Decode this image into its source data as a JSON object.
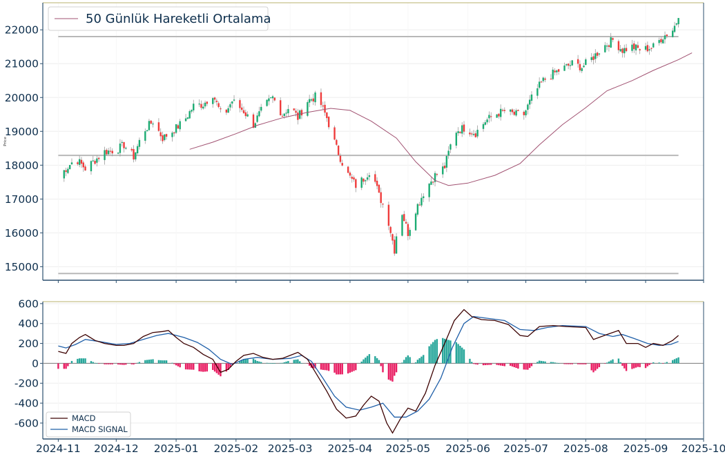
{
  "chart_data": [
    {
      "type": "candlestick",
      "ylabel": "Price",
      "ylim": [
        14600,
        22800
      ],
      "yticks": [
        15000,
        16000,
        17000,
        18000,
        19000,
        20000,
        21000,
        22000
      ],
      "horizontal_lines": [
        21800,
        18290,
        14800
      ],
      "legend": {
        "position": "top-left",
        "entries": [
          "50 Günlük Hareketli Ortalama"
        ]
      },
      "series": [
        {
          "name": "50 Günlük Hareketli Ortalama",
          "type": "line",
          "points": [
            [
              "2025-01-08",
              18470
            ],
            [
              "2025-01-20",
              18680
            ],
            [
              "2025-02-01",
              18930
            ],
            [
              "2025-02-12",
              19180
            ],
            [
              "2025-02-25",
              19400
            ],
            [
              "2025-03-10",
              19560
            ],
            [
              "2025-03-22",
              19680
            ],
            [
              "2025-04-01",
              19620
            ],
            [
              "2025-04-12",
              19300
            ],
            [
              "2025-04-25",
              18800
            ],
            [
              "2025-05-05",
              18100
            ],
            [
              "2025-05-15",
              17550
            ],
            [
              "2025-05-22",
              17400
            ],
            [
              "2025-06-01",
              17470
            ],
            [
              "2025-06-15",
              17700
            ],
            [
              "2025-06-28",
              18050
            ],
            [
              "2025-07-08",
              18600
            ],
            [
              "2025-07-20",
              19200
            ],
            [
              "2025-08-01",
              19700
            ],
            [
              "2025-08-12",
              20200
            ],
            [
              "2025-08-25",
              20500
            ],
            [
              "2025-09-05",
              20800
            ],
            [
              "2025-09-18",
              21120
            ],
            [
              "2025-09-25",
              21320
            ]
          ]
        },
        {
          "name": "Price",
          "type": "candles",
          "points": [
            [
              "2024-11-01",
              17650
            ],
            [
              "2024-11-05",
              17900
            ],
            [
              "2024-11-10",
              18200
            ],
            [
              "2024-11-15",
              17900
            ],
            [
              "2024-11-20",
              18150
            ],
            [
              "2024-11-25",
              18400
            ],
            [
              "2024-12-01",
              18450
            ],
            [
              "2024-12-05",
              18600
            ],
            [
              "2024-12-10",
              18250
            ],
            [
              "2024-12-15",
              19000
            ],
            [
              "2024-12-20",
              19300
            ],
            [
              "2024-12-25",
              18800
            ],
            [
              "2024-12-30",
              19000
            ],
            [
              "2025-01-05",
              19300
            ],
            [
              "2025-01-10",
              19750
            ],
            [
              "2025-01-15",
              19800
            ],
            [
              "2025-01-20",
              20100
            ],
            [
              "2025-01-25",
              19400
            ],
            [
              "2025-01-30",
              19900
            ],
            [
              "2025-02-05",
              19600
            ],
            [
              "2025-02-10",
              19200
            ],
            [
              "2025-02-15",
              19700
            ],
            [
              "2025-02-20",
              20000
            ],
            [
              "2025-02-25",
              19500
            ],
            [
              "2025-03-01",
              19750
            ],
            [
              "2025-03-05",
              19400
            ],
            [
              "2025-03-10",
              19900
            ],
            [
              "2025-03-15",
              20050
            ],
            [
              "2025-03-20",
              19400
            ],
            [
              "2025-03-25",
              18500
            ],
            [
              "2025-03-30",
              17800
            ],
            [
              "2025-04-04",
              17400
            ],
            [
              "2025-04-08",
              17600
            ],
            [
              "2025-04-12",
              17900
            ],
            [
              "2025-04-16",
              17100
            ],
            [
              "2025-04-20",
              16600
            ],
            [
              "2025-04-24",
              15500
            ],
            [
              "2025-04-27",
              16800
            ],
            [
              "2025-05-01",
              16000
            ],
            [
              "2025-05-05",
              16700
            ],
            [
              "2025-05-10",
              17300
            ],
            [
              "2025-05-15",
              17700
            ],
            [
              "2025-05-20",
              17950
            ],
            [
              "2025-05-25",
              19000
            ],
            [
              "2025-05-30",
              19100
            ],
            [
              "2025-06-05",
              18950
            ],
            [
              "2025-06-10",
              19300
            ],
            [
              "2025-06-15",
              19500
            ],
            [
              "2025-06-20",
              19600
            ],
            [
              "2025-06-25",
              19500
            ],
            [
              "2025-06-30",
              19500
            ],
            [
              "2025-07-05",
              20100
            ],
            [
              "2025-07-10",
              20500
            ],
            [
              "2025-07-15",
              20700
            ],
            [
              "2025-07-20",
              20850
            ],
            [
              "2025-07-25",
              21000
            ],
            [
              "2025-07-30",
              20900
            ],
            [
              "2025-08-05",
              21200
            ],
            [
              "2025-08-10",
              21500
            ],
            [
              "2025-08-15",
              21700
            ],
            [
              "2025-08-20",
              21400
            ],
            [
              "2025-08-25",
              21500
            ],
            [
              "2025-08-30",
              21400
            ],
            [
              "2025-09-05",
              21500
            ],
            [
              "2025-09-10",
              21800
            ],
            [
              "2025-09-15",
              22000
            ],
            [
              "2025-09-18",
              22350
            ]
          ]
        }
      ]
    },
    {
      "type": "line",
      "ylim": [
        -760,
        620
      ],
      "yticks": [
        -600,
        -400,
        -200,
        0,
        200,
        400,
        600
      ],
      "xticks": [
        "2024-11",
        "2024-12",
        "2025-01",
        "2025-02",
        "2025-03",
        "2025-04",
        "2025-05",
        "2025-06",
        "2025-07",
        "2025-08",
        "2025-09",
        "2025-10"
      ],
      "xlim": [
        "2024-10-24",
        "2025-10-01"
      ],
      "horizontal_lines": [
        0
      ],
      "legend": {
        "position": "bottom-left",
        "entries": [
          "MACD",
          "MACD SIGNAL"
        ]
      },
      "series": [
        {
          "name": "MACD",
          "color": "#3b0000",
          "points": [
            [
              "2024-11-01",
              120
            ],
            [
              "2024-11-05",
              100
            ],
            [
              "2024-11-08",
              200
            ],
            [
              "2024-11-12",
              260
            ],
            [
              "2024-11-15",
              290
            ],
            [
              "2024-11-20",
              230
            ],
            [
              "2024-11-25",
              200
            ],
            [
              "2024-12-01",
              180
            ],
            [
              "2024-12-05",
              180
            ],
            [
              "2024-12-10",
              200
            ],
            [
              "2024-12-15",
              270
            ],
            [
              "2024-12-20",
              310
            ],
            [
              "2024-12-25",
              320
            ],
            [
              "2024-12-28",
              330
            ],
            [
              "2025-01-01",
              260
            ],
            [
              "2025-01-05",
              200
            ],
            [
              "2025-01-10",
              160
            ],
            [
              "2025-01-15",
              90
            ],
            [
              "2025-01-20",
              40
            ],
            [
              "2025-01-24",
              -90
            ],
            [
              "2025-01-28",
              -60
            ],
            [
              "2025-02-01",
              20
            ],
            [
              "2025-02-05",
              80
            ],
            [
              "2025-02-10",
              100
            ],
            [
              "2025-02-15",
              60
            ],
            [
              "2025-02-20",
              40
            ],
            [
              "2025-02-25",
              50
            ],
            [
              "2025-03-01",
              80
            ],
            [
              "2025-03-05",
              110
            ],
            [
              "2025-03-10",
              40
            ],
            [
              "2025-03-15",
              -120
            ],
            [
              "2025-03-20",
              -280
            ],
            [
              "2025-03-25",
              -460
            ],
            [
              "2025-03-30",
              -550
            ],
            [
              "2025-04-04",
              -530
            ],
            [
              "2025-04-08",
              -420
            ],
            [
              "2025-04-12",
              -330
            ],
            [
              "2025-04-16",
              -380
            ],
            [
              "2025-04-20",
              -600
            ],
            [
              "2025-04-23",
              -700
            ],
            [
              "2025-04-27",
              -560
            ],
            [
              "2025-05-01",
              -450
            ],
            [
              "2025-05-05",
              -480
            ],
            [
              "2025-05-10",
              -300
            ],
            [
              "2025-05-15",
              -20
            ],
            [
              "2025-05-20",
              200
            ],
            [
              "2025-05-25",
              430
            ],
            [
              "2025-05-30",
              540
            ],
            [
              "2025-06-03",
              470
            ],
            [
              "2025-06-08",
              440
            ],
            [
              "2025-06-15",
              430
            ],
            [
              "2025-06-22",
              390
            ],
            [
              "2025-06-28",
              280
            ],
            [
              "2025-07-02",
              270
            ],
            [
              "2025-07-08",
              370
            ],
            [
              "2025-07-15",
              380
            ],
            [
              "2025-07-22",
              370
            ],
            [
              "2025-08-01",
              360
            ],
            [
              "2025-08-05",
              240
            ],
            [
              "2025-08-12",
              290
            ],
            [
              "2025-08-18",
              330
            ],
            [
              "2025-08-22",
              200
            ],
            [
              "2025-08-28",
              200
            ],
            [
              "2025-09-01",
              160
            ],
            [
              "2025-09-05",
              200
            ],
            [
              "2025-09-10",
              180
            ],
            [
              "2025-09-15",
              230
            ],
            [
              "2025-09-18",
              280
            ]
          ]
        },
        {
          "name": "MACD SIGNAL",
          "color": "#1f5fa8",
          "points": [
            [
              "2024-11-01",
              175
            ],
            [
              "2024-11-05",
              155
            ],
            [
              "2024-11-10",
              190
            ],
            [
              "2024-11-15",
              240
            ],
            [
              "2024-11-22",
              220
            ],
            [
              "2024-12-01",
              190
            ],
            [
              "2024-12-08",
              200
            ],
            [
              "2024-12-15",
              240
            ],
            [
              "2024-12-22",
              280
            ],
            [
              "2024-12-28",
              300
            ],
            [
              "2025-01-05",
              260
            ],
            [
              "2025-01-12",
              210
            ],
            [
              "2025-01-18",
              140
            ],
            [
              "2025-01-24",
              40
            ],
            [
              "2025-01-30",
              -10
            ],
            [
              "2025-02-05",
              40
            ],
            [
              "2025-02-12",
              60
            ],
            [
              "2025-02-20",
              40
            ],
            [
              "2025-03-01",
              50
            ],
            [
              "2025-03-07",
              80
            ],
            [
              "2025-03-12",
              20
            ],
            [
              "2025-03-18",
              -150
            ],
            [
              "2025-03-24",
              -330
            ],
            [
              "2025-03-30",
              -440
            ],
            [
              "2025-04-06",
              -470
            ],
            [
              "2025-04-12",
              -440
            ],
            [
              "2025-04-18",
              -400
            ],
            [
              "2025-04-24",
              -540
            ],
            [
              "2025-04-30",
              -540
            ],
            [
              "2025-05-06",
              -480
            ],
            [
              "2025-05-12",
              -360
            ],
            [
              "2025-05-18",
              -150
            ],
            [
              "2025-05-24",
              160
            ],
            [
              "2025-05-30",
              400
            ],
            [
              "2025-06-04",
              470
            ],
            [
              "2025-06-12",
              450
            ],
            [
              "2025-06-20",
              430
            ],
            [
              "2025-06-28",
              340
            ],
            [
              "2025-07-05",
              330
            ],
            [
              "2025-07-12",
              360
            ],
            [
              "2025-07-20",
              380
            ],
            [
              "2025-08-01",
              370
            ],
            [
              "2025-08-08",
              300
            ],
            [
              "2025-08-15",
              270
            ],
            [
              "2025-08-20",
              290
            ],
            [
              "2025-08-26",
              250
            ],
            [
              "2025-09-02",
              200
            ],
            [
              "2025-09-08",
              180
            ],
            [
              "2025-09-14",
              190
            ],
            [
              "2025-09-18",
              220
            ]
          ]
        }
      ]
    }
  ]
}
